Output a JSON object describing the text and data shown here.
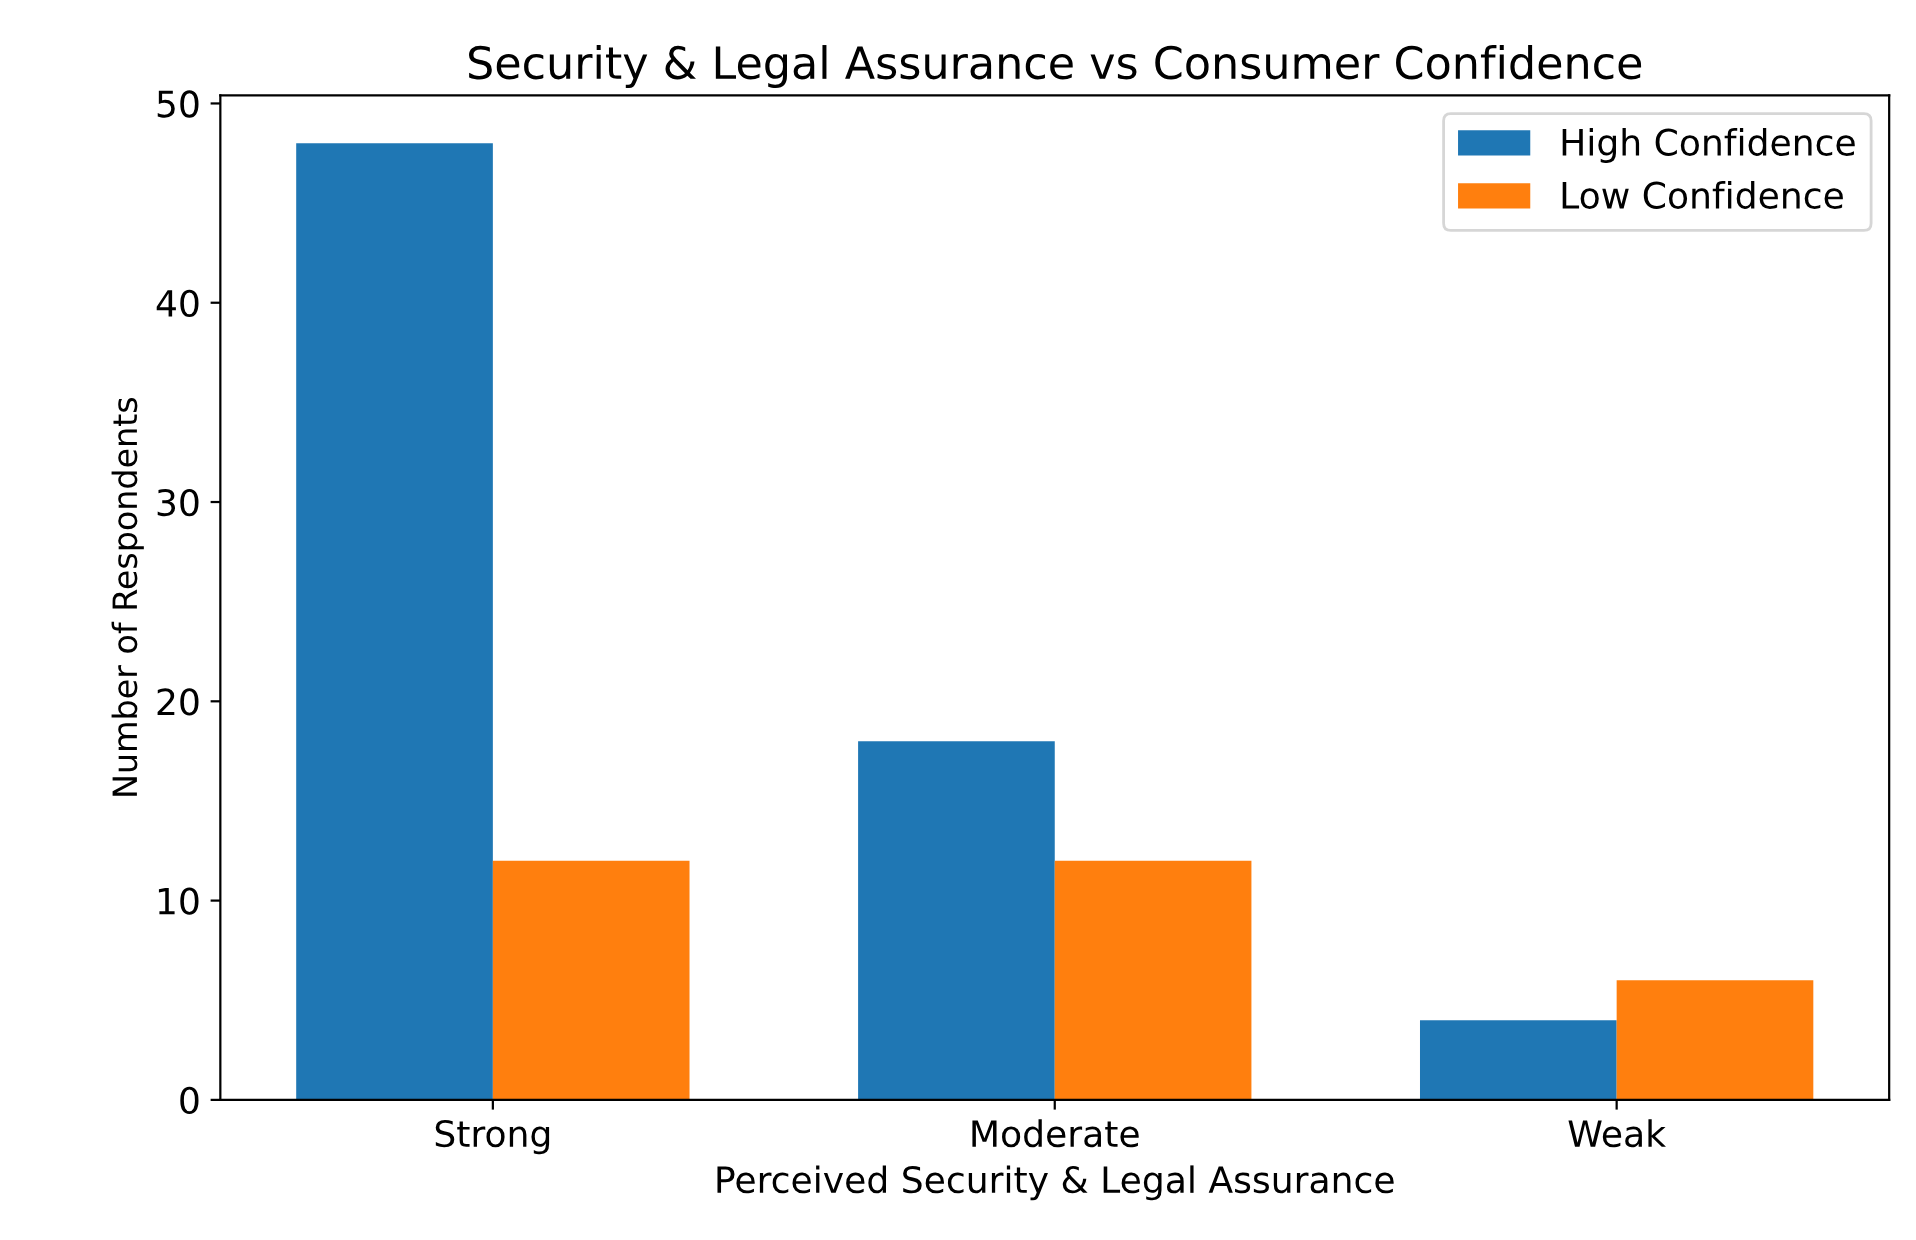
{
  "chart_data": {
    "type": "bar",
    "title": "Security & Legal Assurance vs Consumer Confidence",
    "xlabel": "Perceived Security & Legal Assurance",
    "ylabel": "Number of Respondents",
    "categories": [
      "Strong",
      "Moderate",
      "Weak"
    ],
    "series": [
      {
        "name": "High Confidence",
        "color": "#1f77b4",
        "values": [
          48,
          18,
          4
        ]
      },
      {
        "name": "Low Confidence",
        "color": "#ff7f0e",
        "values": [
          12,
          12,
          6
        ]
      }
    ],
    "ylim": [
      0,
      50.4
    ],
    "yticks": [
      0,
      10,
      20,
      30,
      40,
      50
    ],
    "legend": "top right",
    "grid": false
  }
}
